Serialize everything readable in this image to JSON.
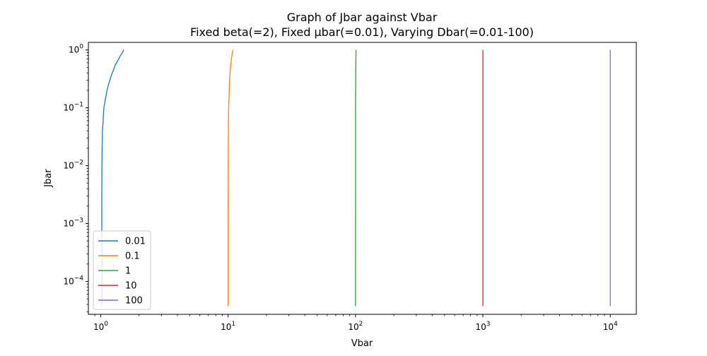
{
  "chart_data": {
    "type": "line",
    "title": "Graph of Jbar against Vbar",
    "subtitle": "Fixed beta(=2), Fixed μbar(=0.01), Varying Dbar(=0.01-100)",
    "xlabel": "Vbar",
    "ylabel": "Jbar",
    "xscale": "log",
    "yscale": "log",
    "xlim": [
      0.8,
      16000
    ],
    "ylim": [
      2.7e-05,
      1.35
    ],
    "grid": false,
    "legend_position": "lower-left",
    "x_ticks": [
      {
        "value": 1,
        "base": "10",
        "exp": "0"
      },
      {
        "value": 10,
        "base": "10",
        "exp": "1"
      },
      {
        "value": 100,
        "base": "10",
        "exp": "2"
      },
      {
        "value": 1000,
        "base": "10",
        "exp": "3"
      },
      {
        "value": 10000,
        "base": "10",
        "exp": "4"
      }
    ],
    "y_ticks": [
      {
        "value": 0.0001,
        "base": "10",
        "exp": "−4"
      },
      {
        "value": 0.001,
        "base": "10",
        "exp": "−3"
      },
      {
        "value": 0.01,
        "base": "10",
        "exp": "−2"
      },
      {
        "value": 0.1,
        "base": "10",
        "exp": "−1"
      },
      {
        "value": 1,
        "base": "10",
        "exp": "0"
      }
    ],
    "series": [
      {
        "name": "0.01",
        "color": "#1f77b4",
        "points": [
          [
            1.02,
            3.75e-05
          ],
          [
            1.02,
            0.0003
          ],
          [
            1.02,
            0.001
          ],
          [
            1.02,
            0.003
          ],
          [
            1.022,
            0.01
          ],
          [
            1.025,
            0.02
          ],
          [
            1.03,
            0.03
          ],
          [
            1.03,
            0.04
          ],
          [
            1.04,
            0.05
          ],
          [
            1.045,
            0.06
          ],
          [
            1.05,
            0.08
          ],
          [
            1.06,
            0.1
          ],
          [
            1.08,
            0.13
          ],
          [
            1.1,
            0.16
          ],
          [
            1.12,
            0.2
          ],
          [
            1.15,
            0.25
          ],
          [
            1.18,
            0.3
          ],
          [
            1.22,
            0.38
          ],
          [
            1.26,
            0.45
          ],
          [
            1.3,
            0.55
          ],
          [
            1.36,
            0.65
          ],
          [
            1.42,
            0.78
          ],
          [
            1.48,
            0.9
          ],
          [
            1.52,
            1.0
          ]
        ]
      },
      {
        "name": "0.1",
        "color": "#ff7f0e",
        "points": [
          [
            10.0,
            3.75e-05
          ],
          [
            10.0,
            0.001
          ],
          [
            10.01,
            0.01
          ],
          [
            10.05,
            0.05
          ],
          [
            10.1,
            0.1
          ],
          [
            10.2,
            0.2
          ],
          [
            10.35,
            0.4
          ],
          [
            10.6,
            0.7
          ],
          [
            10.9,
            1.0
          ]
        ]
      },
      {
        "name": "1",
        "color": "#2ca02c",
        "points": [
          [
            100.0,
            3.75e-05
          ],
          [
            100.1,
            0.1
          ],
          [
            100.5,
            0.5
          ],
          [
            101.0,
            1.0
          ]
        ]
      },
      {
        "name": "10",
        "color": "#d62728",
        "points": [
          [
            1000.0,
            3.75e-05
          ],
          [
            1000.1,
            1.0
          ]
        ]
      },
      {
        "name": "100",
        "color": "#9467bd",
        "points": [
          [
            10000.0,
            3.75e-05
          ],
          [
            10000.1,
            1.0
          ]
        ]
      }
    ]
  }
}
